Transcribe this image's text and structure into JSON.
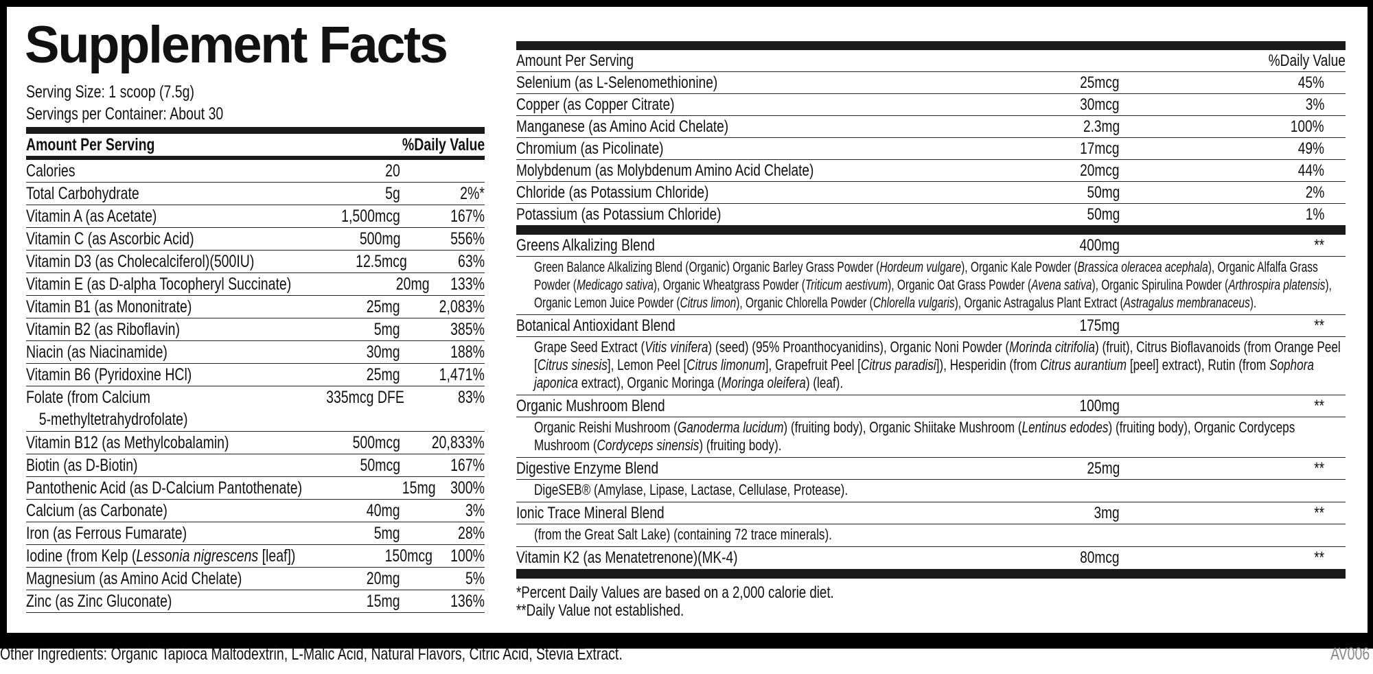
{
  "title": "Supplement Facts",
  "serving_size": "Serving Size: 1 scoop (7.5g)",
  "servings_per_container": "Servings per Container: About 30",
  "left_table": {
    "header_amount": "Amount Per Serving",
    "header_dv": "%Daily Value",
    "rows": [
      {
        "name": "Calories",
        "amount": "20",
        "dv": ""
      },
      {
        "name": "Total Carbohydrate",
        "amount": "5g",
        "dv": "2%*"
      },
      {
        "name": "Vitamin A (as Acetate)",
        "amount": "1,500mcg",
        "dv": "167%"
      },
      {
        "name": "Vitamin C (as Ascorbic Acid)",
        "amount": "500mg",
        "dv": "556%"
      },
      {
        "name": "Vitamin D3 (as Cholecalciferol)(500IU)",
        "amount": "12.5mcg",
        "dv": "63%"
      },
      {
        "name": "Vitamin E (as D-alpha Tocopheryl Succinate)",
        "amount": "20mg",
        "dv": "133%"
      },
      {
        "name": "Vitamin B1 (as Mononitrate)",
        "amount": "25mg",
        "dv": "2,083%"
      },
      {
        "name": "Vitamin B2 (as Riboflavin)",
        "amount": "5mg",
        "dv": "385%"
      },
      {
        "name": "Niacin (as Niacinamide)",
        "amount": "30mg",
        "dv": "188%"
      },
      {
        "name": "Vitamin B6 (Pyridoxine HCl)",
        "amount": "25mg",
        "dv": "1,471%"
      },
      {
        "name": "Folate (from Calcium",
        "name2": "5-methyltetrahydrofolate)",
        "amount": "335mcg DFE",
        "dv": "83%"
      },
      {
        "name": "Vitamin B12 (as Methylcobalamin)",
        "amount": "500mcg",
        "dv": "20,833%"
      },
      {
        "name": "Biotin (as D-Biotin)",
        "amount": "50mcg",
        "dv": "167%"
      },
      {
        "name": "Pantothenic Acid (as D-Calcium Pantothenate)",
        "amount": "15mg",
        "dv": "300%"
      },
      {
        "name": "Calcium (as Carbonate)",
        "amount": "40mg",
        "dv": "3%"
      },
      {
        "name": "Iron (as Ferrous Fumarate)",
        "amount": "5mg",
        "dv": "28%"
      },
      {
        "name": "Iodine (from Kelp (",
        "name_italic": "Lessonia nigrescens",
        "name_after": " [leaf])",
        "amount": "150mcg",
        "dv": "100%"
      },
      {
        "name": "Magnesium (as Amino Acid Chelate)",
        "amount": "20mg",
        "dv": "5%"
      },
      {
        "name": "Zinc (as Zinc Gluconate)",
        "amount": "15mg",
        "dv": "136%"
      }
    ]
  },
  "right_table": {
    "header_amount": "Amount Per Serving",
    "header_dv": "%Daily Value",
    "rows": [
      {
        "name": "Selenium (as L-Selenomethionine)",
        "amount": "25mcg",
        "dv": "45%"
      },
      {
        "name": "Copper (as Copper Citrate)",
        "amount": "30mcg",
        "dv": "3%"
      },
      {
        "name": "Manganese (as Amino Acid Chelate)",
        "amount": "2.3mg",
        "dv": "100%"
      },
      {
        "name": "Chromium (as Picolinate)",
        "amount": "17mcg",
        "dv": "49%"
      },
      {
        "name": "Molybdenum (as Molybdenum Amino Acid Chelate)",
        "amount": "20mcg",
        "dv": "44%"
      },
      {
        "name": "Chloride (as Potassium Chloride)",
        "amount": "50mg",
        "dv": "2%"
      },
      {
        "name": "Potassium (as Potassium Chloride)",
        "amount": "50mg",
        "dv": "1%"
      }
    ],
    "blends": [
      {
        "name": "Greens Alkalizing Blend",
        "amount": "400mg",
        "dv": "**",
        "small": true,
        "description": [
          {
            "t": "Green Balance Alkalizing Blend (Organic) Organic Barley Grass Powder ("
          },
          {
            "t": "Hordeum vulgare",
            "i": true
          },
          {
            "t": "), Organic Kale Powder ("
          },
          {
            "t": "Brassica oleracea acephala",
            "i": true
          },
          {
            "t": "), Organic Alfalfa Grass Powder ("
          },
          {
            "t": "Medicago sativa",
            "i": true
          },
          {
            "t": "), Organic Wheatgrass Powder ("
          },
          {
            "t": "Triticum aestivum",
            "i": true
          },
          {
            "t": "), Organic Oat Grass Powder ("
          },
          {
            "t": "Avena sativa",
            "i": true
          },
          {
            "t": "), Organic Spirulina Powder ("
          },
          {
            "t": "Arthrospira platensis",
            "i": true
          },
          {
            "t": "), Organic Lemon Juice Powder ("
          },
          {
            "t": "Citrus limon",
            "i": true
          },
          {
            "t": "), Organic Chlorella Powder ("
          },
          {
            "t": "Chlorella vulgaris",
            "i": true
          },
          {
            "t": "), Organic Astragalus Plant Extract ("
          },
          {
            "t": "Astragalus membranaceus",
            "i": true
          },
          {
            "t": ")."
          }
        ]
      },
      {
        "name": "Botanical Antioxidant Blend",
        "amount": "175mg",
        "dv": "**",
        "description": [
          {
            "t": "Grape Seed Extract ("
          },
          {
            "t": "Vitis vinifera",
            "i": true
          },
          {
            "t": ") (seed) (95% Proanthocyanidins), Organic Noni Powder ("
          },
          {
            "t": "Morinda citrifolia",
            "i": true
          },
          {
            "t": ") (fruit), Citrus Bioflavanoids (from Orange Peel ["
          },
          {
            "t": "Citrus sinesis",
            "i": true
          },
          {
            "t": "], Lemon Peel ["
          },
          {
            "t": "Citrus limonum",
            "i": true
          },
          {
            "t": "], Grapefruit Peel ["
          },
          {
            "t": "Citrus paradisi",
            "i": true
          },
          {
            "t": "]), Hesperidin (from "
          },
          {
            "t": "Citrus aurantium",
            "i": true
          },
          {
            "t": " [peel] extract), Rutin (from "
          },
          {
            "t": "Sophora japonica",
            "i": true
          },
          {
            "t": " extract), Organic Moringa ("
          },
          {
            "t": "Moringa oleifera",
            "i": true
          },
          {
            "t": ") (leaf)."
          }
        ]
      },
      {
        "name": "Organic Mushroom Blend",
        "amount": "100mg",
        "dv": "**",
        "description": [
          {
            "t": "Organic Reishi Mushroom ("
          },
          {
            "t": "Ganoderma lucidum",
            "i": true
          },
          {
            "t": ") (fruiting body), Organic Shiitake Mushroom ("
          },
          {
            "t": "Lentinus edodes",
            "i": true
          },
          {
            "t": ") (fruiting body), Organic Cordyceps Mushroom ("
          },
          {
            "t": "Cordyceps sinensis",
            "i": true
          },
          {
            "t": ") (fruiting body)."
          }
        ]
      },
      {
        "name": "Digestive Enzyme Blend",
        "amount": "25mg",
        "dv": "**",
        "description": [
          {
            "t": "DigeSEB® (Amylase, Lipase, Lactase, Cellulase, Protease)."
          }
        ]
      },
      {
        "name": "Ionic Trace Mineral Blend",
        "amount": "3mg",
        "dv": "**",
        "description": [
          {
            "t": "(from the Great Salt Lake) (containing 72 trace minerals)."
          }
        ]
      }
    ],
    "last_row": {
      "name": "Vitamin K2 (as Menatetrenone)(MK-4)",
      "amount": "80mcg",
      "dv": "**"
    },
    "footnotes": [
      "*Percent Daily Values are based on a 2,000 calorie diet.",
      "**Daily Value not established."
    ]
  },
  "other_ingredients": "Other Ingredients: Organic Tapioca Maltodextrin, L-Malic Acid, Natural Flavors, Citric Acid, Stevia Extract.",
  "product_code": "AV006"
}
